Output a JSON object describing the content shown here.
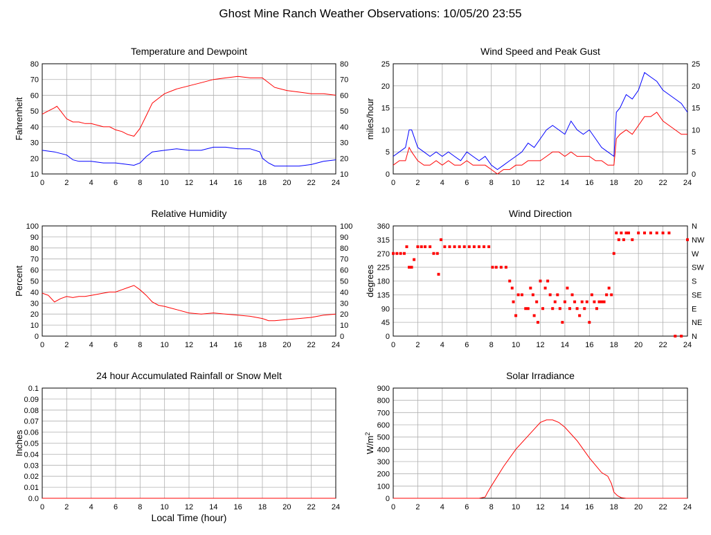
{
  "page_title": "Ghost Mine Ranch Weather Observations: 10/05/20 23:55",
  "x_axis_label": "Local Time (hour)",
  "chart_data": [
    {
      "id": "temp",
      "type": "line",
      "title": "Temperature and Dewpoint",
      "ylabel": "Fahrenheit",
      "xlim": [
        0,
        24
      ],
      "ylim": [
        10,
        80
      ],
      "xticks": [
        0,
        2,
        4,
        6,
        8,
        10,
        12,
        14,
        16,
        18,
        20,
        22,
        24
      ],
      "yticks": [
        10,
        20,
        30,
        40,
        50,
        60,
        70,
        80
      ],
      "ytick_labels": [
        "10",
        "20",
        "30",
        "40",
        "50",
        "60",
        "70",
        "80"
      ],
      "right_ticks": [
        "10",
        "20",
        "30",
        "40",
        "50",
        "60",
        "70",
        "80"
      ],
      "grid": true,
      "series": [
        {
          "color": "#ff0000",
          "x": [
            0,
            0.5,
            1,
            1.2,
            1.5,
            2,
            2.5,
            3,
            3.5,
            4,
            4.5,
            5,
            5.5,
            6,
            6.5,
            7,
            7.5,
            8,
            8.5,
            9,
            9.5,
            10,
            11,
            12,
            13,
            14,
            15,
            16,
            17,
            18,
            19,
            20,
            21,
            22,
            23,
            24
          ],
          "y": [
            48,
            50,
            52,
            53,
            50,
            45,
            43,
            43,
            42,
            42,
            41,
            40,
            40,
            38,
            37,
            35,
            34,
            39,
            47,
            55,
            58,
            61,
            64,
            66,
            68,
            70,
            71,
            72,
            71,
            71,
            65,
            63,
            62,
            61,
            61,
            60
          ]
        },
        {
          "color": "#0000ff",
          "x": [
            0,
            1,
            2,
            2.5,
            3,
            4,
            5,
            6,
            7,
            7.5,
            8,
            8.5,
            9,
            10,
            11,
            12,
            13,
            14,
            15,
            16,
            17,
            17.8,
            18,
            18.5,
            19,
            20,
            21,
            22,
            23,
            24
          ],
          "y": [
            25,
            24,
            22,
            19,
            18,
            18,
            17,
            17,
            16,
            15.5,
            17,
            21,
            24,
            25,
            26,
            25,
            25,
            27,
            27,
            26,
            26,
            24,
            20,
            17,
            15,
            15,
            15,
            16,
            18,
            19
          ]
        }
      ]
    },
    {
      "id": "wind",
      "type": "line",
      "title": "Wind Speed and Peak Gust",
      "ylabel": "miles/hour",
      "xlim": [
        0,
        24
      ],
      "ylim": [
        0,
        25
      ],
      "xticks": [
        0,
        2,
        4,
        6,
        8,
        10,
        12,
        14,
        16,
        18,
        20,
        22,
        24
      ],
      "yticks": [
        0,
        5,
        10,
        15,
        20,
        25
      ],
      "ytick_labels": [
        "0",
        "5",
        "10",
        "15",
        "20",
        "25"
      ],
      "right_ticks": [
        "0",
        "5",
        "10",
        "15",
        "20",
        "25"
      ],
      "grid": true,
      "series": [
        {
          "color": "#0000ff",
          "x": [
            0,
            0.5,
            1,
            1.3,
            1.5,
            2,
            2.5,
            3,
            3.5,
            4,
            4.5,
            5,
            5.5,
            6,
            6.5,
            7,
            7.5,
            8,
            8.5,
            9,
            9.5,
            10,
            10.5,
            11,
            11.5,
            12,
            12.5,
            13,
            13.5,
            14,
            14.5,
            15,
            15.5,
            16,
            16.5,
            17,
            17.5,
            18,
            18.2,
            18.5,
            19,
            19.5,
            20,
            20.5,
            21,
            21.5,
            22,
            22.5,
            23,
            23.5,
            24
          ],
          "y": [
            4,
            5,
            6,
            10,
            10,
            6,
            5,
            4,
            5,
            4,
            5,
            4,
            3,
            5,
            4,
            3,
            4,
            2,
            1,
            2,
            3,
            4,
            5,
            7,
            6,
            8,
            10,
            11,
            10,
            9,
            12,
            10,
            9,
            10,
            8,
            6,
            5,
            4,
            14,
            15,
            18,
            17,
            19,
            23,
            22,
            21,
            19,
            18,
            17,
            16,
            14
          ]
        },
        {
          "color": "#ff0000",
          "x": [
            0,
            0.5,
            1,
            1.3,
            1.5,
            2,
            2.5,
            3,
            3.5,
            4,
            4.5,
            5,
            5.5,
            6,
            6.5,
            7,
            7.5,
            8,
            8.5,
            9,
            9.5,
            10,
            10.5,
            11,
            11.5,
            12,
            12.5,
            13,
            13.5,
            14,
            14.5,
            15,
            15.5,
            16,
            16.5,
            17,
            17.5,
            18,
            18.2,
            18.5,
            19,
            19.5,
            20,
            20.5,
            21,
            21.5,
            22,
            22.5,
            23,
            23.5,
            24
          ],
          "y": [
            2,
            3,
            3,
            6,
            5,
            3,
            2,
            2,
            3,
            2,
            3,
            2,
            2,
            3,
            2,
            2,
            2,
            1,
            0,
            1,
            1,
            2,
            2,
            3,
            3,
            3,
            4,
            5,
            5,
            4,
            5,
            4,
            4,
            4,
            3,
            3,
            2,
            2,
            8,
            9,
            10,
            9,
            11,
            13,
            13,
            14,
            12,
            11,
            10,
            9,
            9
          ]
        }
      ]
    },
    {
      "id": "rh",
      "type": "line",
      "title": "Relative Humidity",
      "ylabel": "Percent",
      "xlim": [
        0,
        24
      ],
      "ylim": [
        0,
        100
      ],
      "xticks": [
        0,
        2,
        4,
        6,
        8,
        10,
        12,
        14,
        16,
        18,
        20,
        22,
        24
      ],
      "yticks": [
        0,
        10,
        20,
        30,
        40,
        50,
        60,
        70,
        80,
        90,
        100
      ],
      "ytick_labels": [
        "0",
        "10",
        "20",
        "30",
        "40",
        "50",
        "60",
        "70",
        "80",
        "90",
        "100"
      ],
      "right_ticks": [
        "0",
        "10",
        "20",
        "30",
        "40",
        "50",
        "60",
        "70",
        "80",
        "90",
        "100"
      ],
      "grid": true,
      "series": [
        {
          "color": "#ff0000",
          "x": [
            0,
            0.5,
            1,
            1.5,
            2,
            2.5,
            3,
            3.5,
            4,
            4.5,
            5,
            5.5,
            6,
            6.5,
            7,
            7.5,
            8,
            8.5,
            9,
            9.5,
            10,
            11,
            12,
            13,
            14,
            15,
            16,
            17,
            18,
            18.5,
            19,
            20,
            21,
            22,
            23,
            24
          ],
          "y": [
            39,
            37,
            31,
            34,
            36,
            35,
            36,
            36,
            37,
            38,
            39,
            40,
            40,
            42,
            44,
            46,
            42,
            37,
            31,
            28,
            27,
            24,
            21,
            20,
            21,
            20,
            19,
            18,
            16,
            14,
            14,
            15,
            16,
            17,
            19,
            20
          ]
        }
      ]
    },
    {
      "id": "dir",
      "type": "scatter",
      "title": "Wind Direction",
      "ylabel": "degrees",
      "xlim": [
        0,
        24
      ],
      "ylim": [
        0,
        360
      ],
      "xticks": [
        0,
        2,
        4,
        6,
        8,
        10,
        12,
        14,
        16,
        18,
        20,
        22,
        24
      ],
      "yticks": [
        0,
        45,
        90,
        135,
        180,
        225,
        270,
        315,
        360
      ],
      "ytick_labels": [
        "0",
        "45",
        "90",
        "135",
        "180",
        "225",
        "270",
        "315",
        "360"
      ],
      "right_ticks": [
        "N",
        "NE",
        "E",
        "SE",
        "S",
        "SW",
        "W",
        "NW",
        "N"
      ],
      "grid": true,
      "series": [
        {
          "color": "#ff0000",
          "x": [
            0,
            0.3,
            0.6,
            0.9,
            1.1,
            1.3,
            1.5,
            1.7,
            2,
            2.3,
            2.6,
            3,
            3.3,
            3.6,
            3.7,
            3.9,
            4.2,
            4.6,
            5,
            5.4,
            5.8,
            6.2,
            6.6,
            7,
            7.4,
            7.8,
            8.1,
            8.4,
            8.8,
            9.2,
            9.5,
            9.7,
            9.8,
            10,
            10.2,
            10.5,
            10.8,
            11,
            11.2,
            11.4,
            11.5,
            11.7,
            11.8,
            12,
            12.2,
            12.4,
            12.6,
            12.8,
            13,
            13.2,
            13.4,
            13.6,
            13.8,
            14,
            14.2,
            14.4,
            14.6,
            14.8,
            15,
            15.2,
            15.4,
            15.6,
            15.8,
            16,
            16.2,
            16.4,
            16.6,
            16.8,
            17,
            17.2,
            17.4,
            17.6,
            17.8,
            18,
            18.2,
            18.4,
            18.6,
            18.8,
            19,
            19.2,
            19.5,
            20,
            20.5,
            21,
            21.5,
            22,
            22.5,
            23,
            23.5,
            24
          ],
          "y": [
            270,
            270,
            270,
            270,
            292,
            225,
            225,
            250,
            292,
            292,
            292,
            292,
            270,
            270,
            202,
            315,
            292,
            292,
            292,
            292,
            292,
            292,
            292,
            292,
            292,
            292,
            225,
            225,
            225,
            225,
            180,
            157,
            112,
            67,
            135,
            135,
            90,
            90,
            157,
            135,
            67,
            112,
            45,
            180,
            90,
            157,
            180,
            135,
            90,
            112,
            135,
            90,
            45,
            112,
            157,
            90,
            135,
            112,
            90,
            67,
            112,
            90,
            112,
            45,
            135,
            112,
            90,
            112,
            112,
            112,
            135,
            157,
            135,
            270,
            337,
            315,
            337,
            315,
            337,
            337,
            315,
            337,
            337,
            337,
            337,
            337,
            337,
            0,
            0,
            315
          ]
        }
      ]
    },
    {
      "id": "rain",
      "type": "line",
      "title": "24 hour Accumulated Rainfall or Snow Melt",
      "ylabel": "Inches",
      "xlim": [
        0,
        24
      ],
      "ylim": [
        0,
        0.1
      ],
      "xticks": [
        0,
        2,
        4,
        6,
        8,
        10,
        12,
        14,
        16,
        18,
        20,
        22,
        24
      ],
      "yticks": [
        0,
        0.01,
        0.02,
        0.03,
        0.04,
        0.05,
        0.06,
        0.07,
        0.08,
        0.09,
        0.1
      ],
      "ytick_labels": [
        "0.0",
        "0.01",
        "0.02",
        "0.03",
        "0.04",
        "0.05",
        "0.06",
        "0.07",
        "0.08",
        "0.09",
        "0.1"
      ],
      "right_ticks": [],
      "grid": true,
      "series": [
        {
          "color": "#ff0000",
          "x": [
            0,
            24
          ],
          "y": [
            0,
            0
          ]
        }
      ]
    },
    {
      "id": "solar",
      "type": "line",
      "title": "Solar Irradiance",
      "ylabel": "W/m",
      "ylabel_sup": "2",
      "xlim": [
        0,
        24
      ],
      "ylim": [
        0,
        900
      ],
      "xticks": [
        0,
        2,
        4,
        6,
        8,
        10,
        12,
        14,
        16,
        18,
        20,
        22,
        24
      ],
      "yticks": [
        0,
        100,
        200,
        300,
        400,
        500,
        600,
        700,
        800,
        900
      ],
      "ytick_labels": [
        "0",
        "100",
        "200",
        "300",
        "400",
        "500",
        "600",
        "700",
        "800",
        "900"
      ],
      "right_ticks": [],
      "grid": true,
      "series": [
        {
          "color": "#ff0000",
          "x": [
            0,
            7,
            7.5,
            7.7,
            8,
            9,
            10,
            11,
            12,
            12.5,
            13,
            13.5,
            14,
            15,
            16,
            17,
            17.5,
            17.8,
            18,
            18.3,
            18.6,
            19,
            24
          ],
          "y": [
            0,
            0,
            10,
            50,
            100,
            260,
            400,
            510,
            620,
            640,
            640,
            620,
            580,
            470,
            330,
            210,
            180,
            120,
            50,
            20,
            5,
            0,
            0
          ]
        }
      ]
    }
  ]
}
